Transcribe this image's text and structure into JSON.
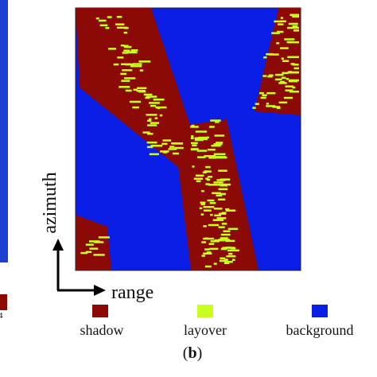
{
  "left_fragment": "4",
  "axes": {
    "vertical": "azimuth",
    "horizontal": "range"
  },
  "legend": [
    {
      "label": "shadow",
      "color": "#8b0a05"
    },
    {
      "label": "layover",
      "color": "#c8ff1e"
    },
    {
      "label": "background",
      "color": "#0a1ee6"
    }
  ],
  "caption": {
    "open": "(",
    "letter": "b",
    "close": ")"
  }
}
